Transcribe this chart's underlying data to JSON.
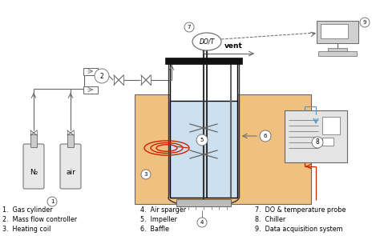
{
  "bg_color": "#ffffff",
  "tank_color": "#f0c080",
  "water_color": "#cce0f0",
  "line_color": "#666666",
  "dark_color": "#333333",
  "red_color": "#cc2200",
  "blue_color": "#5599cc",
  "labels": {
    "1": "1.  Gas cylinder",
    "2": "2.  Mass flow controller",
    "3": "3.  Heating coil",
    "4": "4.  Air sparger",
    "5": "5.  Impeller",
    "6": "6.  Baffle",
    "7": "7.  DO & temperature probe",
    "8": "8.  Chiller",
    "9": "9.  Data acquisition system"
  },
  "N2_label": "N₂",
  "air_label": "air",
  "DOT_label": "DO/T",
  "vent_label": "vent"
}
